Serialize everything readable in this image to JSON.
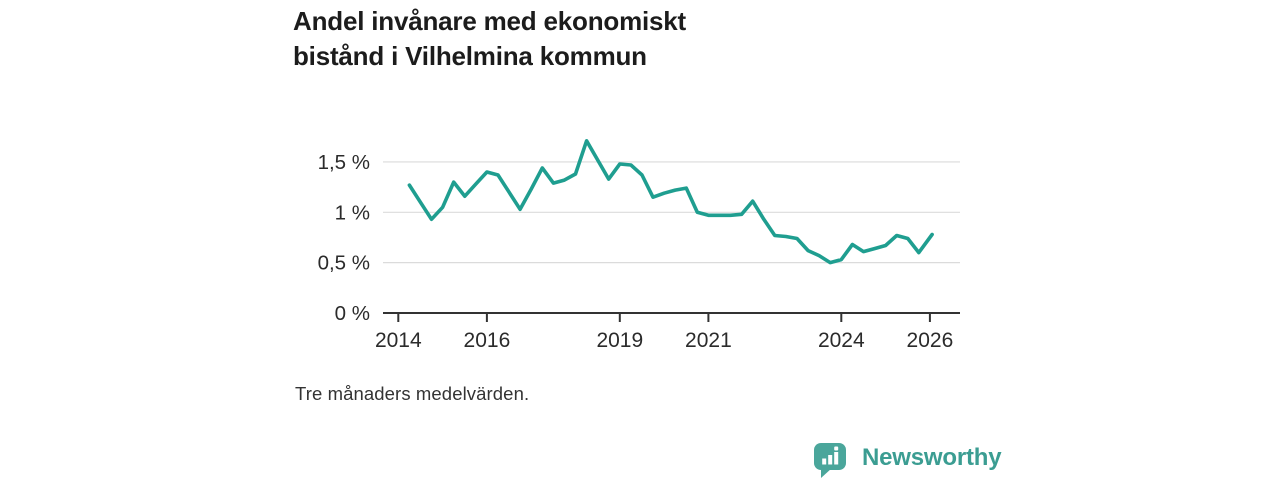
{
  "title": "Andel invånare med ekonomiskt\nbistånd i Vilhelmina kommun",
  "footnote": "Tre månaders medelvärden.",
  "logo": {
    "text": "Newsworthy"
  },
  "colors": {
    "line": "#1f9e90",
    "grid": "#dbdbdb",
    "axis": "#333333",
    "text": "#2b2b2b",
    "title": "#1c1c1c",
    "logo_teal": "#4aa69b",
    "logo_text": "#3b9d92"
  },
  "chart_data": {
    "type": "line",
    "title": "Andel invånare med ekonomiskt bistånd i Vilhelmina kommun",
    "subtitle": "Tre månaders medelvärden.",
    "xlabel": "",
    "ylabel": "",
    "unit": "%",
    "x_range": [
      2013.55,
      2026.55
    ],
    "ylim": [
      0,
      1.8
    ],
    "grid": "horizontal",
    "legend": "none",
    "x_ticks": [
      {
        "year": 2014,
        "label": "2014"
      },
      {
        "year": 2016,
        "label": "2016"
      },
      {
        "year": 2019,
        "label": "2019"
      },
      {
        "year": 2021,
        "label": "2021"
      },
      {
        "year": 2024,
        "label": "2024"
      },
      {
        "year": 2026,
        "label": "2026"
      }
    ],
    "y_ticks": [
      {
        "value": 0,
        "label": "0 %"
      },
      {
        "value": 0.5,
        "label": "0,5 %"
      },
      {
        "value": 1,
        "label": "1 %"
      },
      {
        "value": 1.5,
        "label": "1,5 %"
      }
    ],
    "series": [
      {
        "name": "Andel invånare med ekonomiskt bistånd",
        "x": [
          2014.25,
          2014.5,
          2014.75,
          2015.0,
          2015.25,
          2015.5,
          2015.75,
          2016.0,
          2016.25,
          2016.5,
          2016.75,
          2017.0,
          2017.25,
          2017.5,
          2017.75,
          2018.0,
          2018.25,
          2018.5,
          2018.75,
          2019.0,
          2019.25,
          2019.5,
          2019.75,
          2020.0,
          2020.25,
          2020.5,
          2020.75,
          2021.0,
          2021.25,
          2021.5,
          2021.75,
          2022.0,
          2022.25,
          2022.5,
          2022.75,
          2023.0,
          2023.25,
          2023.5,
          2023.75,
          2024.0,
          2024.25,
          2024.5,
          2024.75,
          2025.0,
          2025.25,
          2025.5,
          2025.75,
          2026.05
        ],
        "values": [
          1.27,
          1.1,
          0.93,
          1.05,
          1.3,
          1.16,
          1.28,
          1.4,
          1.37,
          1.2,
          1.03,
          1.23,
          1.44,
          1.29,
          1.32,
          1.38,
          1.71,
          1.52,
          1.33,
          1.48,
          1.47,
          1.37,
          1.15,
          1.19,
          1.22,
          1.24,
          1.0,
          0.97,
          0.97,
          0.97,
          0.98,
          1.11,
          0.93,
          0.77,
          0.76,
          0.74,
          0.62,
          0.57,
          0.5,
          0.53,
          0.68,
          0.61,
          0.64,
          0.67,
          0.77,
          0.74,
          0.6,
          0.78
        ]
      }
    ]
  }
}
